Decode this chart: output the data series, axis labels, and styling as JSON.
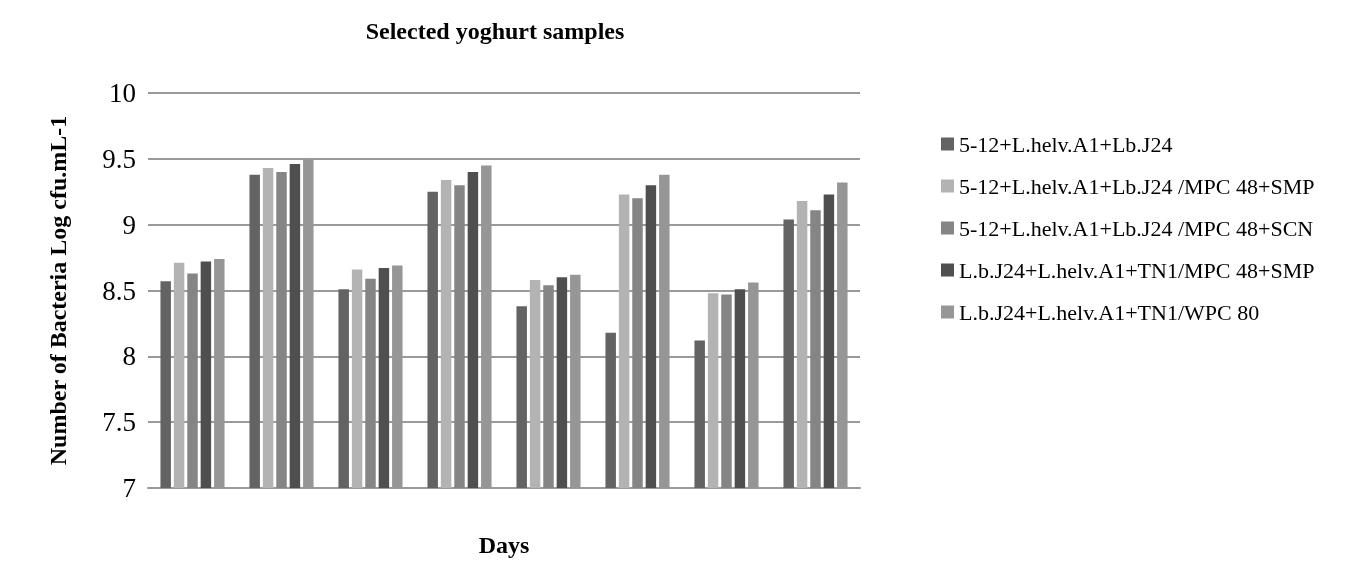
{
  "chart_data": {
    "type": "bar",
    "title": "Selected yoghurt samples",
    "xlabel": "Days",
    "ylabel": "Number of Bacteria Log cfu.mL-1",
    "categories": [
      null,
      null,
      null,
      null,
      null,
      null,
      null,
      null
    ],
    "series": [
      {
        "name": "5-12+L.helv.A1+Lb.J24",
        "color": "#636363",
        "values": [
          8.57,
          9.38,
          8.51,
          9.25,
          8.38,
          8.18,
          8.12,
          9.04
        ]
      },
      {
        "name": "5-12+L.helv.A1+Lb.J24 /MPC 48+SMP",
        "color": "#b3b3b3",
        "values": [
          8.71,
          9.43,
          8.66,
          9.34,
          8.58,
          9.23,
          8.48,
          9.18
        ]
      },
      {
        "name": "5-12+L.helv.A1+Lb.J24 /MPC 48+SCN",
        "color": "#858585",
        "values": [
          8.63,
          9.4,
          8.59,
          9.3,
          8.54,
          9.2,
          8.47,
          9.11
        ]
      },
      {
        "name": "L.b.J24+L.helv.A1+TN1/MPC 48+SMP",
        "color": "#4f4f4f",
        "values": [
          8.72,
          9.46,
          8.67,
          9.4,
          8.6,
          9.3,
          8.51,
          9.23
        ]
      },
      {
        "name": "L.b.J24+L.helv.A1+TN1/WPC 80",
        "color": "#969696",
        "values": [
          8.74,
          9.5,
          8.69,
          9.45,
          8.62,
          9.38,
          8.56,
          9.32
        ]
      }
    ],
    "ylim": [
      7,
      10
    ],
    "yticks": [
      7,
      7.5,
      8,
      8.5,
      9,
      9.5,
      10
    ],
    "grid": "y",
    "legend": "right"
  }
}
